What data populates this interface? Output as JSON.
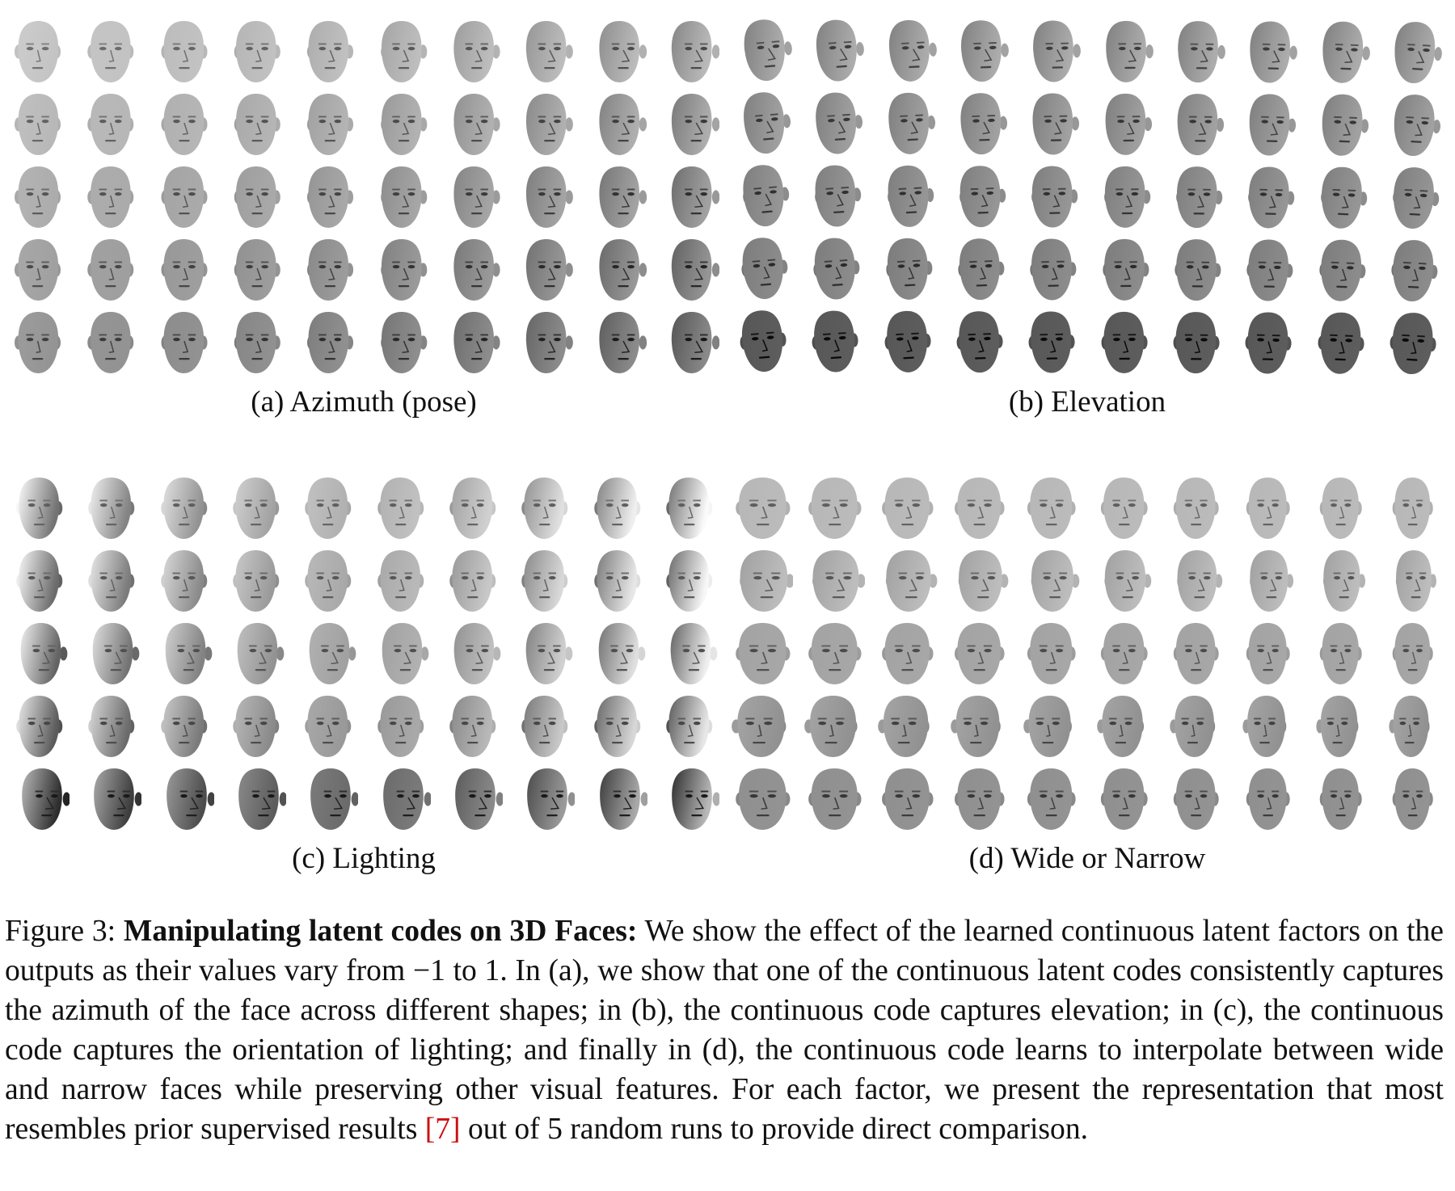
{
  "figure": {
    "panels": [
      {
        "id": "a",
        "label": "(a) Azimuth (pose)"
      },
      {
        "id": "b",
        "label": "(b) Elevation"
      },
      {
        "id": "c",
        "label": "(c) Lighting"
      },
      {
        "id": "d",
        "label": "(d) Wide or Narrow"
      }
    ]
  },
  "caption": {
    "label": "Figure 3:",
    "bold_title": "Manipulating latent codes on 3D Faces:",
    "text_1": "We show the effect of the learned continuous latent factors on the outputs as their values vary from −1 to 1. In (a), we show that one of the continuous latent codes consistently captures the azimuth of the face across different shapes; in (b), the continuous code captures elevation; in (c), the continuous code captures the orientation of lighting; and finally in (d), the continuous code learns to interpolate between wide and narrow faces while preserving other visual features. For each factor, we present the representation that most resembles prior supervised results",
    "citation": "[7]",
    "text_2": "out of 5 random runs to provide direct comparison."
  }
}
